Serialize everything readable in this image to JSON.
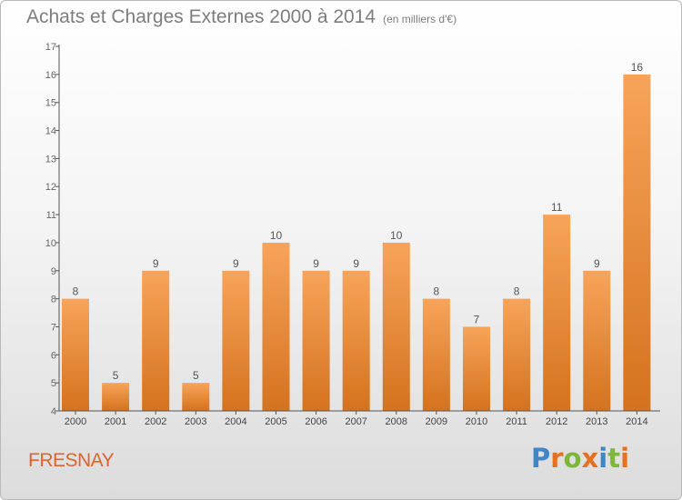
{
  "title": "Achats et Charges Externes 2000 à 2014",
  "unit": "(en milliers d'€)",
  "commune": "FRESNAY",
  "logo": {
    "text": "Proxiti",
    "letters": [
      "P",
      "r",
      "o",
      "x",
      "i",
      "t",
      "i"
    ]
  },
  "colors": {
    "bar_light": "#f7a45a",
    "bar_dark": "#d4721e",
    "title": "#7d7d7d",
    "commune": "#e1622b"
  },
  "chart_data": {
    "type": "bar",
    "categories": [
      "2000",
      "2001",
      "2002",
      "2003",
      "2004",
      "2005",
      "2006",
      "2007",
      "2008",
      "2009",
      "2010",
      "2011",
      "2012",
      "2013",
      "2014"
    ],
    "values": [
      8,
      5,
      9,
      5,
      9,
      10,
      9,
      9,
      10,
      8,
      7,
      8,
      11,
      9,
      16
    ],
    "y_ticks": [
      "4",
      "5",
      "6",
      "7",
      "8",
      "9",
      "10",
      "11",
      "12",
      "13",
      "14",
      "15",
      "16",
      "17"
    ],
    "ylim": [
      4,
      17
    ],
    "grid": false,
    "data_labels": true
  }
}
